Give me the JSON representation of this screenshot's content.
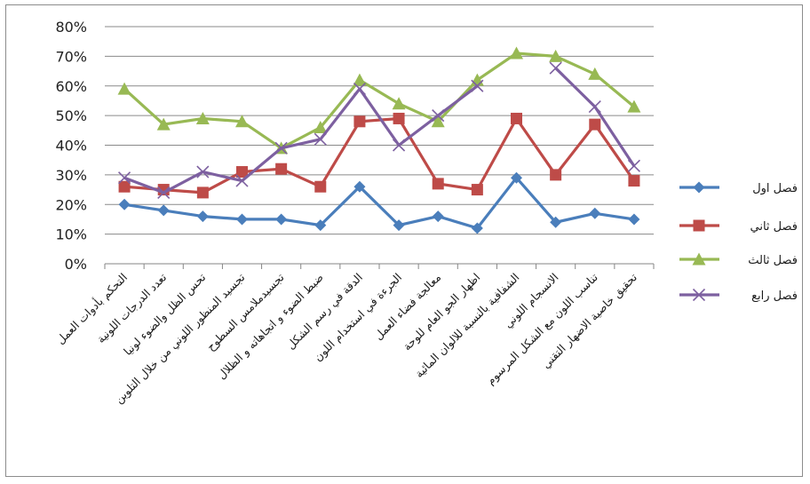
{
  "chart_data": {
    "type": "line",
    "title": "",
    "xlabel": "",
    "ylabel": "",
    "ylim": [
      0,
      0.8
    ],
    "y_ticks": [
      "0%",
      "10%",
      "20%",
      "30%",
      "40%",
      "50%",
      "60%",
      "70%",
      "80%"
    ],
    "grid": true,
    "legend_position": "right",
    "categories": [
      "التحكم بأدوات العمل",
      "تعدد الدرجات اللونية",
      "تحس الظل والضوء لونيا",
      "تجسيد المنظور اللوني من خلال التلوين",
      "تجسيدملامس السطوح",
      "ضبط الضوء و اتجاهاته و الظلال",
      "الدقة في رسم الشكل",
      "الجرءة في استخدام اللون",
      "معالجة فضاء العمل",
      "اظهار الجو العام للوحة",
      "الشفافية بالنسبة للالوان المائية",
      "الانسجام اللوني",
      "تناسب اللون مع الشكل المرسوم",
      "تحقيق خاصية الاضهار التقني"
    ],
    "series": [
      {
        "name": "فصل اول",
        "color": "#4a7ebb",
        "marker": "diamond",
        "values": [
          0.2,
          0.18,
          0.16,
          0.15,
          0.15,
          0.13,
          0.26,
          0.13,
          0.16,
          0.12,
          0.29,
          0.14,
          0.17,
          0.15
        ]
      },
      {
        "name": "فصل ثاني",
        "color": "#be4b48",
        "marker": "square",
        "values": [
          0.26,
          0.25,
          0.24,
          0.31,
          0.32,
          0.26,
          0.48,
          0.49,
          0.27,
          0.25,
          0.49,
          0.3,
          0.47,
          0.28
        ]
      },
      {
        "name": "فصل ثالث",
        "color": "#98b954",
        "marker": "triangle",
        "values": [
          0.59,
          0.47,
          0.49,
          0.48,
          0.39,
          0.46,
          0.62,
          0.54,
          0.48,
          0.62,
          0.71,
          0.7,
          0.64,
          0.53
        ]
      },
      {
        "name": "فصل رابع",
        "color": "#7d60a0",
        "marker": "x",
        "values": [
          0.29,
          0.24,
          0.31,
          0.28,
          0.39,
          0.42,
          0.59,
          0.4,
          0.5,
          0.6,
          null,
          0.66,
          0.53,
          0.33
        ]
      }
    ]
  }
}
